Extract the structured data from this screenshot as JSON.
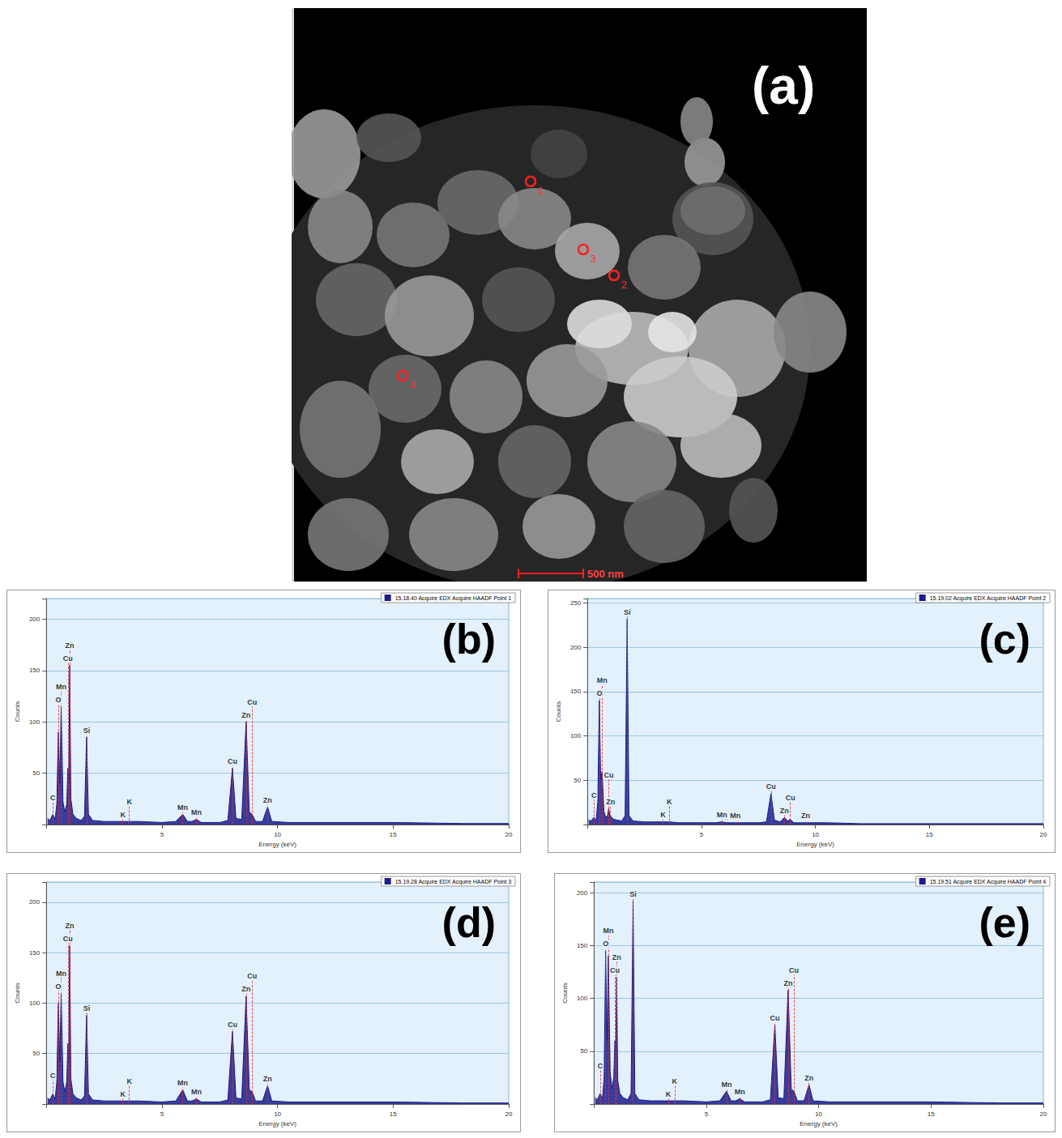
{
  "micrograph": {
    "panel": "(a)",
    "points": [
      "1",
      "2",
      "3",
      "4"
    ],
    "scale_bar": "500 nm"
  },
  "chart_data": [
    {
      "type": "line",
      "panel": "(b)",
      "x_label": "Energy (keV)",
      "y_label": "Counts",
      "x": [
        0.05,
        0.15,
        0.28,
        0.38,
        0.45,
        0.52,
        0.58,
        0.64,
        0.72,
        0.8,
        0.88,
        0.93,
        0.97,
        1.01,
        1.06,
        1.15,
        1.3,
        1.5,
        1.65,
        1.74,
        1.82,
        2.0,
        2.5,
        3.0,
        3.31,
        3.59,
        4.0,
        5.0,
        5.6,
        5.9,
        6.1,
        6.3,
        6.49,
        6.7,
        7.5,
        7.85,
        8.05,
        8.2,
        8.45,
        8.64,
        8.78,
        8.9,
        9.05,
        9.35,
        9.57,
        9.75,
        10.5,
        12,
        15,
        18,
        20
      ],
      "series": [
        {
          "name": "15.18.40 Acquire EDX Acquire HAADF Point 1",
          "color": "#1c1c8a",
          "values": [
            6,
            4,
            10,
            5,
            20,
            90,
            40,
            115,
            22,
            12,
            20,
            55,
            40,
            155,
            25,
            10,
            6,
            4,
            8,
            85,
            10,
            4,
            3,
            3,
            3,
            3,
            3,
            2,
            3,
            10,
            3,
            3,
            5,
            2,
            2,
            4,
            55,
            6,
            5,
            100,
            12,
            10,
            3,
            3,
            17,
            3,
            2,
            2,
            2,
            1,
            1
          ]
        }
      ],
      "annotations": [
        {
          "label": "C",
          "x": 0.28
        },
        {
          "label": "O",
          "x": 0.52
        },
        {
          "label": "Mn",
          "x": 0.64
        },
        {
          "label": "Cu",
          "x": 0.93
        },
        {
          "label": "Zn",
          "x": 1.01
        },
        {
          "label": "Si",
          "x": 1.74
        },
        {
          "label": "K",
          "x": 3.31
        },
        {
          "label": "K",
          "x": 3.59
        },
        {
          "label": "Mn",
          "x": 5.9
        },
        {
          "label": "Mn",
          "x": 6.49
        },
        {
          "label": "Cu",
          "x": 8.05
        },
        {
          "label": "Zn",
          "x": 8.64
        },
        {
          "label": "Cu",
          "x": 8.9
        },
        {
          "label": "Zn",
          "x": 9.57
        }
      ],
      "xlim": [
        0,
        20
      ],
      "xticks": [
        5,
        10,
        15,
        20
      ],
      "ylim": [
        0,
        220
      ],
      "yticks": [
        50,
        100,
        150,
        200
      ],
      "grid": true,
      "legend": "upper right"
    },
    {
      "type": "line",
      "panel": "(c)",
      "x_label": "Energy (keV)",
      "y_label": "Counts",
      "x": [
        0.05,
        0.15,
        0.28,
        0.38,
        0.45,
        0.52,
        0.58,
        0.64,
        0.72,
        0.8,
        0.88,
        0.93,
        0.97,
        1.01,
        1.06,
        1.15,
        1.3,
        1.5,
        1.65,
        1.74,
        1.82,
        2.0,
        2.5,
        3.0,
        3.31,
        3.59,
        4.0,
        5.0,
        5.6,
        5.9,
        6.1,
        6.3,
        6.49,
        6.7,
        7.5,
        7.85,
        8.05,
        8.2,
        8.45,
        8.64,
        8.78,
        8.9,
        9.05,
        9.35,
        9.57,
        9.75,
        10.5,
        12,
        15,
        18,
        20
      ],
      "series": [
        {
          "name": "15.19.02 Acquire EDX Acquire HAADF Point 2",
          "color": "#1c1c8a",
          "values": [
            5,
            4,
            8,
            5,
            25,
            140,
            50,
            60,
            15,
            8,
            10,
            18,
            12,
            10,
            8,
            6,
            5,
            4,
            10,
            232,
            10,
            4,
            3,
            3,
            3,
            3,
            2,
            2,
            2,
            3,
            2,
            2,
            2,
            2,
            2,
            3,
            35,
            5,
            3,
            8,
            4,
            6,
            2,
            2,
            2,
            2,
            2,
            1,
            1,
            1,
            1
          ]
        }
      ],
      "annotations": [
        {
          "label": "C",
          "x": 0.28
        },
        {
          "label": "O",
          "x": 0.52
        },
        {
          "label": "Mn",
          "x": 0.64
        },
        {
          "label": "Cu",
          "x": 0.93
        },
        {
          "label": "Zn",
          "x": 1.01
        },
        {
          "label": "Si",
          "x": 1.74
        },
        {
          "label": "K",
          "x": 3.31
        },
        {
          "label": "K",
          "x": 3.59
        },
        {
          "label": "Mn",
          "x": 5.9
        },
        {
          "label": "Mn",
          "x": 6.49
        },
        {
          "label": "Cu",
          "x": 8.05
        },
        {
          "label": "Zn",
          "x": 8.64
        },
        {
          "label": "Cu",
          "x": 8.9
        },
        {
          "label": "Zn",
          "x": 9.57
        }
      ],
      "xlim": [
        0,
        20
      ],
      "xticks": [
        5,
        10,
        15,
        20
      ],
      "ylim": [
        0,
        255
      ],
      "yticks": [
        50,
        100,
        150,
        200,
        250
      ],
      "grid": true,
      "legend": "upper right"
    },
    {
      "type": "line",
      "panel": "(d)",
      "x_label": "Energy (keV)",
      "y_label": "Counts",
      "x": [
        0.05,
        0.15,
        0.28,
        0.38,
        0.45,
        0.52,
        0.58,
        0.64,
        0.72,
        0.8,
        0.88,
        0.93,
        0.97,
        1.01,
        1.06,
        1.15,
        1.3,
        1.5,
        1.65,
        1.74,
        1.82,
        2.0,
        2.5,
        3.0,
        3.31,
        3.59,
        4.0,
        5.0,
        5.6,
        5.9,
        6.1,
        6.3,
        6.49,
        6.7,
        7.5,
        7.85,
        8.05,
        8.2,
        8.45,
        8.64,
        8.78,
        8.9,
        9.05,
        9.35,
        9.57,
        9.75,
        10.5,
        12,
        15,
        18,
        20
      ],
      "series": [
        {
          "name": "15.19.28 Acquire EDX Acquire HAADF Point 3",
          "color": "#1c1c8a",
          "values": [
            6,
            4,
            10,
            5,
            22,
            100,
            42,
            110,
            22,
            12,
            22,
            60,
            42,
            157,
            25,
            10,
            6,
            4,
            8,
            88,
            10,
            4,
            3,
            3,
            3,
            3,
            3,
            2,
            3,
            14,
            3,
            3,
            5,
            2,
            2,
            4,
            72,
            6,
            5,
            107,
            14,
            12,
            3,
            3,
            18,
            3,
            2,
            2,
            2,
            1,
            1
          ]
        }
      ],
      "annotations": [
        {
          "label": "C",
          "x": 0.28
        },
        {
          "label": "O",
          "x": 0.52
        },
        {
          "label": "Mn",
          "x": 0.64
        },
        {
          "label": "Cu",
          "x": 0.93
        },
        {
          "label": "Zn",
          "x": 1.01
        },
        {
          "label": "Si",
          "x": 1.74
        },
        {
          "label": "K",
          "x": 3.31
        },
        {
          "label": "K",
          "x": 3.59
        },
        {
          "label": "Mn",
          "x": 5.9
        },
        {
          "label": "Mn",
          "x": 6.49
        },
        {
          "label": "Cu",
          "x": 8.05
        },
        {
          "label": "Zn",
          "x": 8.64
        },
        {
          "label": "Cu",
          "x": 8.9
        },
        {
          "label": "Zn",
          "x": 9.57
        }
      ],
      "xlim": [
        0,
        20
      ],
      "xticks": [
        5,
        10,
        15,
        20
      ],
      "ylim": [
        0,
        220
      ],
      "yticks": [
        50,
        100,
        150,
        200
      ],
      "grid": true,
      "legend": "upper right"
    },
    {
      "type": "line",
      "panel": "(e)",
      "x_label": "Energy (keV)",
      "y_label": "Counts",
      "x": [
        0.05,
        0.15,
        0.28,
        0.38,
        0.45,
        0.52,
        0.58,
        0.64,
        0.72,
        0.8,
        0.88,
        0.93,
        0.97,
        1.01,
        1.06,
        1.15,
        1.3,
        1.5,
        1.65,
        1.74,
        1.82,
        2.0,
        2.5,
        3.0,
        3.31,
        3.59,
        4.0,
        5.0,
        5.6,
        5.9,
        6.1,
        6.3,
        6.49,
        6.7,
        7.5,
        7.85,
        8.05,
        8.2,
        8.45,
        8.64,
        8.78,
        8.9,
        9.05,
        9.35,
        9.57,
        9.75,
        10.5,
        12,
        15,
        18,
        20
      ],
      "series": [
        {
          "name": "15.19.51 Acquire EDX Acquire HAADF Point 4",
          "color": "#1c1c8a",
          "values": [
            6,
            4,
            10,
            5,
            25,
            145,
            60,
            140,
            30,
            15,
            25,
            60,
            50,
            120,
            22,
            10,
            6,
            4,
            10,
            192,
            10,
            4,
            3,
            3,
            3,
            3,
            3,
            2,
            3,
            12,
            3,
            3,
            5,
            2,
            2,
            4,
            75,
            6,
            5,
            108,
            14,
            12,
            3,
            3,
            18,
            3,
            2,
            2,
            2,
            1,
            1
          ]
        }
      ],
      "annotations": [
        {
          "label": "C",
          "x": 0.28
        },
        {
          "label": "O",
          "x": 0.52
        },
        {
          "label": "Mn",
          "x": 0.64
        },
        {
          "label": "Cu",
          "x": 0.93
        },
        {
          "label": "Zn",
          "x": 1.01
        },
        {
          "label": "Si",
          "x": 1.74
        },
        {
          "label": "K",
          "x": 3.31
        },
        {
          "label": "K",
          "x": 3.59
        },
        {
          "label": "Mn",
          "x": 5.9
        },
        {
          "label": "Mn",
          "x": 6.49
        },
        {
          "label": "Cu",
          "x": 8.05
        },
        {
          "label": "Zn",
          "x": 8.64
        },
        {
          "label": "Cu",
          "x": 8.9
        },
        {
          "label": "Zn",
          "x": 9.57
        }
      ],
      "xlim": [
        0,
        20
      ],
      "xticks": [
        5,
        10,
        15,
        20
      ],
      "ylim": [
        0,
        210
      ],
      "yticks": [
        50,
        100,
        150,
        200
      ],
      "grid": true,
      "legend": "upper right"
    }
  ]
}
